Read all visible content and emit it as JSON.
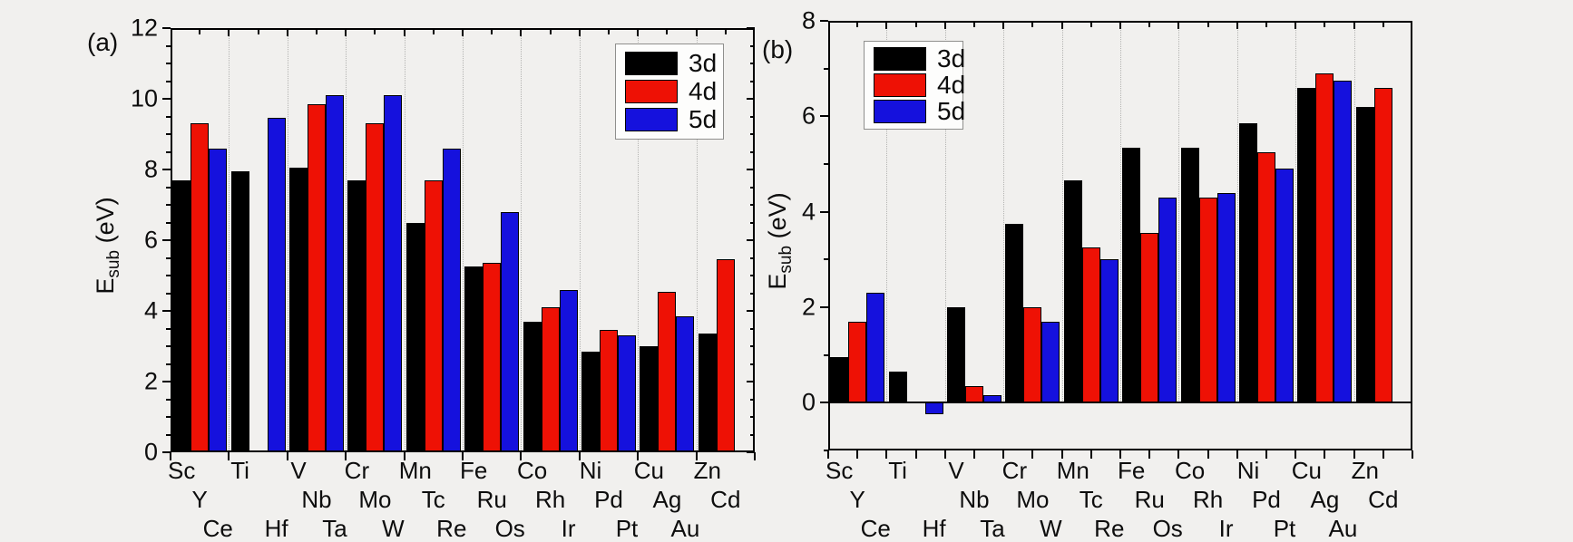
{
  "figure": {
    "background": "#f1f0ee",
    "series_colors": {
      "3d": "#000000",
      "4d": "#ee1105",
      "5d": "#1511dd"
    }
  },
  "chart_data": [
    {
      "type": "bar",
      "panel_label": "(a)",
      "ylabel": {
        "main": "E",
        "sub": "sub",
        "unit": " (eV)"
      },
      "ylim": [
        0,
        12
      ],
      "yticks": [
        0,
        2,
        4,
        6,
        8,
        10,
        12
      ],
      "yminor_step": 0.5,
      "grid": true,
      "legend_position": "top-right",
      "legend_items": [
        {
          "label": "3d",
          "color": "#000000"
        },
        {
          "label": "4d",
          "color": "#ee1105"
        },
        {
          "label": "5d",
          "color": "#1511dd"
        }
      ],
      "categories": [
        [
          "Sc",
          "Y",
          "Ce"
        ],
        [
          "Ti",
          "",
          "Hf"
        ],
        [
          "V",
          "Nb",
          "Ta"
        ],
        [
          "Cr",
          "Mo",
          "W"
        ],
        [
          "Mn",
          "Tc",
          "Re"
        ],
        [
          "Fe",
          "Ru",
          "Os"
        ],
        [
          "Co",
          "Rh",
          "Ir"
        ],
        [
          "Ni",
          "Pd",
          "Pt"
        ],
        [
          "Cu",
          "Ag",
          "Au"
        ],
        [
          "Zn",
          "Cd",
          ""
        ]
      ],
      "series": [
        {
          "name": "3d",
          "color": "#000000",
          "values": [
            7.7,
            7.95,
            8.05,
            7.7,
            6.5,
            5.25,
            3.7,
            2.85,
            3.0,
            3.35
          ]
        },
        {
          "name": "4d",
          "color": "#ee1105",
          "values": [
            9.3,
            null,
            9.85,
            9.3,
            7.7,
            5.35,
            4.1,
            3.45,
            4.55,
            5.45
          ]
        },
        {
          "name": "5d",
          "color": "#1511dd",
          "values": [
            8.6,
            9.45,
            10.1,
            10.1,
            8.6,
            6.8,
            4.6,
            3.3,
            3.85,
            null
          ]
        }
      ]
    },
    {
      "type": "bar",
      "panel_label": "(b)",
      "ylabel": {
        "main": "E",
        "sub": "sub",
        "unit": " (eV)"
      },
      "ylim": [
        -1,
        8
      ],
      "yticks": [
        0,
        2,
        4,
        6,
        8
      ],
      "yminor_step": 1,
      "grid": true,
      "legend_position": "top-left",
      "legend_items": [
        {
          "label": "3d",
          "color": "#000000"
        },
        {
          "label": "4d",
          "color": "#ee1105"
        },
        {
          "label": "5d",
          "color": "#1511dd"
        }
      ],
      "categories": [
        [
          "Sc",
          "Y",
          "Ce"
        ],
        [
          "Ti",
          "",
          "Hf"
        ],
        [
          "V",
          "Nb",
          "Ta"
        ],
        [
          "Cr",
          "Mo",
          "W"
        ],
        [
          "Mn",
          "Tc",
          "Re"
        ],
        [
          "Fe",
          "Ru",
          "Os"
        ],
        [
          "Co",
          "Rh",
          "Ir"
        ],
        [
          "Ni",
          "Pd",
          "Pt"
        ],
        [
          "Cu",
          "Ag",
          "Au"
        ],
        [
          "Zn",
          "Cd",
          ""
        ]
      ],
      "series": [
        {
          "name": "3d",
          "color": "#000000",
          "values": [
            0.95,
            0.65,
            2.0,
            3.75,
            4.65,
            5.35,
            5.35,
            5.85,
            6.6,
            6.2
          ]
        },
        {
          "name": "4d",
          "color": "#ee1105",
          "values": [
            1.7,
            null,
            0.35,
            2.0,
            3.25,
            3.55,
            4.3,
            5.25,
            6.9,
            6.6
          ]
        },
        {
          "name": "5d",
          "color": "#1511dd",
          "values": [
            2.3,
            -0.25,
            0.15,
            1.7,
            3.0,
            4.3,
            4.4,
            4.9,
            6.75,
            null
          ]
        }
      ]
    }
  ]
}
